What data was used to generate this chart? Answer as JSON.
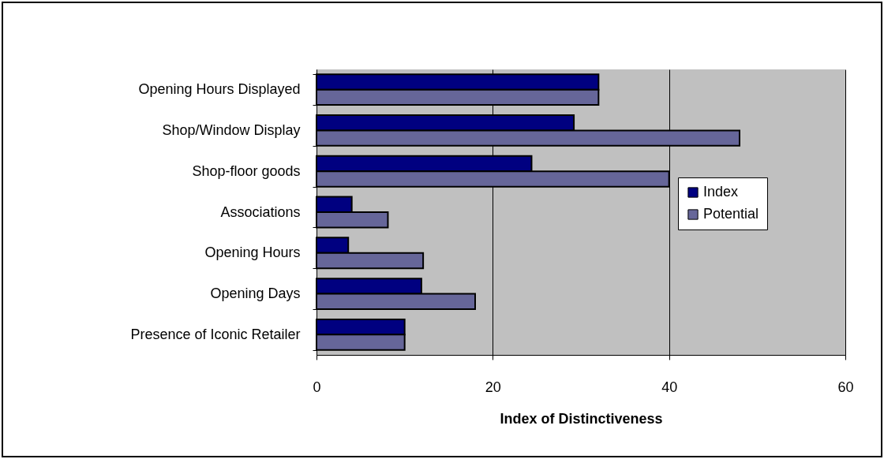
{
  "chart_data": {
    "type": "bar",
    "orientation": "horizontal",
    "xlabel": "Index of Distinctiveness",
    "categories": [
      "Opening Hours Displayed",
      "Shop/Window Display",
      "Shop-floor goods",
      "Associations",
      "Opening Hours",
      "Opening Days",
      "Presence of Iconic Retailer"
    ],
    "series": [
      {
        "name": "Index",
        "color": "#000080",
        "values": [
          32,
          29.2,
          24.4,
          4,
          3.6,
          11.9,
          10
        ]
      },
      {
        "name": "Potential",
        "color": "#666699",
        "values": [
          32,
          48,
          40,
          8.1,
          12.1,
          18,
          10
        ]
      }
    ],
    "xlim": [
      0,
      60
    ],
    "xticks": [
      0,
      20,
      40,
      60
    ],
    "grid": "x",
    "legend": "right"
  }
}
